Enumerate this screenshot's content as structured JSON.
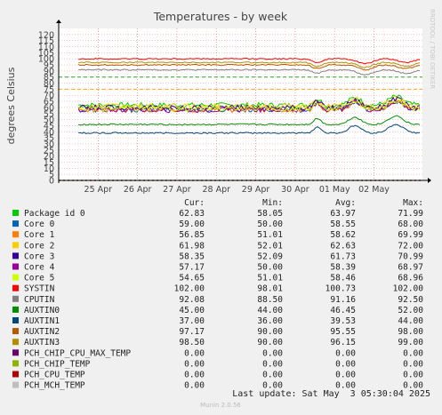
{
  "chart_data": {
    "type": "line",
    "title": "Temperatures - by week",
    "ylabel": "degrees Celsius",
    "watermark": "RRDTOOL / TOBI OETIKER",
    "ylim": [
      0,
      125
    ],
    "y_ticks": [
      0,
      5,
      10,
      15,
      20,
      25,
      30,
      35,
      40,
      45,
      50,
      55,
      60,
      65,
      70,
      75,
      80,
      85,
      90,
      95,
      100,
      105,
      110,
      115,
      120
    ],
    "grid": true,
    "xlim": [
      "2025-04-24 00:00",
      "2025-05-03 05:30"
    ],
    "x_ticks": [
      {
        "label": "25 Apr",
        "at": "2025-04-25 00:00"
      },
      {
        "label": "26 Apr",
        "at": "2025-04-26 00:00"
      },
      {
        "label": "27 Apr",
        "at": "2025-04-27 00:00"
      },
      {
        "label": "28 Apr",
        "at": "2025-04-28 00:00"
      },
      {
        "label": "29 Apr",
        "at": "2025-04-29 00:00"
      },
      {
        "label": "30 Apr",
        "at": "2025-04-30 00:00"
      },
      {
        "label": "01 May",
        "at": "2025-05-01 00:00"
      },
      {
        "label": "02 May",
        "at": "2025-05-02 00:00"
      }
    ],
    "x_start": "2025-04-24 12:00",
    "thresholds": [
      {
        "value": 85,
        "color": "#22aa22"
      },
      {
        "value": 75,
        "color": "#ffaa00"
      }
    ],
    "columns": [
      "Cur:",
      "Min:",
      "Avg:",
      "Max:"
    ],
    "series": [
      {
        "name": "Package id 0",
        "color": "#00cc00",
        "cur": "62.83",
        "min": "58.05",
        "avg": "63.97",
        "max": "71.99",
        "level": 62
      },
      {
        "name": "Core 0",
        "color": "#0066b3",
        "cur": "59.00",
        "min": "50.00",
        "avg": "58.55",
        "max": "68.00",
        "level": 58
      },
      {
        "name": "Core 1",
        "color": "#ff8000",
        "cur": "56.85",
        "min": "51.01",
        "avg": "58.62",
        "max": "69.99",
        "level": 58
      },
      {
        "name": "Core 2",
        "color": "#ffcc00",
        "cur": "61.98",
        "min": "52.01",
        "avg": "62.63",
        "max": "72.00",
        "level": 61
      },
      {
        "name": "Core 3",
        "color": "#330099",
        "cur": "58.35",
        "min": "52.09",
        "avg": "61.73",
        "max": "70.99",
        "level": 60
      },
      {
        "name": "Core 4",
        "color": "#990099",
        "cur": "57.17",
        "min": "50.00",
        "avg": "58.39",
        "max": "68.97",
        "level": 58
      },
      {
        "name": "Core 5",
        "color": "#ccff00",
        "cur": "54.65",
        "min": "51.01",
        "avg": "58.46",
        "max": "68.96",
        "level": 59
      },
      {
        "name": "SYSTIN",
        "color": "#ff0000",
        "cur": "102.00",
        "min": "98.01",
        "avg": "100.73",
        "max": "102.00",
        "level": 100
      },
      {
        "name": "CPUTIN",
        "color": "#808080",
        "cur": "92.08",
        "min": "88.50",
        "avg": "91.16",
        "max": "92.50",
        "level": 91
      },
      {
        "name": "AUXTIN0",
        "color": "#008f00",
        "cur": "45.00",
        "min": "44.00",
        "avg": "46.45",
        "max": "52.00",
        "level": 46
      },
      {
        "name": "AUXTIN1",
        "color": "#00487d",
        "cur": "37.00",
        "min": "36.00",
        "avg": "39.53",
        "max": "44.00",
        "level": 39
      },
      {
        "name": "AUXTIN2",
        "color": "#b35a00",
        "cur": "97.17",
        "min": "90.00",
        "avg": "95.55",
        "max": "98.00",
        "level": 95
      },
      {
        "name": "AUXTIN3",
        "color": "#b38f00",
        "cur": "98.50",
        "min": "90.00",
        "avg": "96.15",
        "max": "99.00",
        "level": 97
      },
      {
        "name": "PCH_CHIP_CPU_MAX_TEMP",
        "color": "#6b006b",
        "cur": "0.00",
        "min": "0.00",
        "avg": "0.00",
        "max": "0.00",
        "level": 0
      },
      {
        "name": "PCH_CHIP_TEMP",
        "color": "#8fb300",
        "cur": "0.00",
        "min": "0.00",
        "avg": "0.00",
        "max": "0.00",
        "level": 0
      },
      {
        "name": "PCH_CPU_TEMP",
        "color": "#b30000",
        "cur": "0.00",
        "min": "0.00",
        "avg": "0.00",
        "max": "0.00",
        "level": 0
      },
      {
        "name": "PCH_MCH_TEMP",
        "color": "#bebebe",
        "cur": "0.00",
        "min": "0.00",
        "avg": "0.00",
        "max": "0.00",
        "level": 0
      }
    ],
    "last_update": "Last update: Sat May  3 05:30:04 2025",
    "footer": "Munin 2.0.56"
  }
}
